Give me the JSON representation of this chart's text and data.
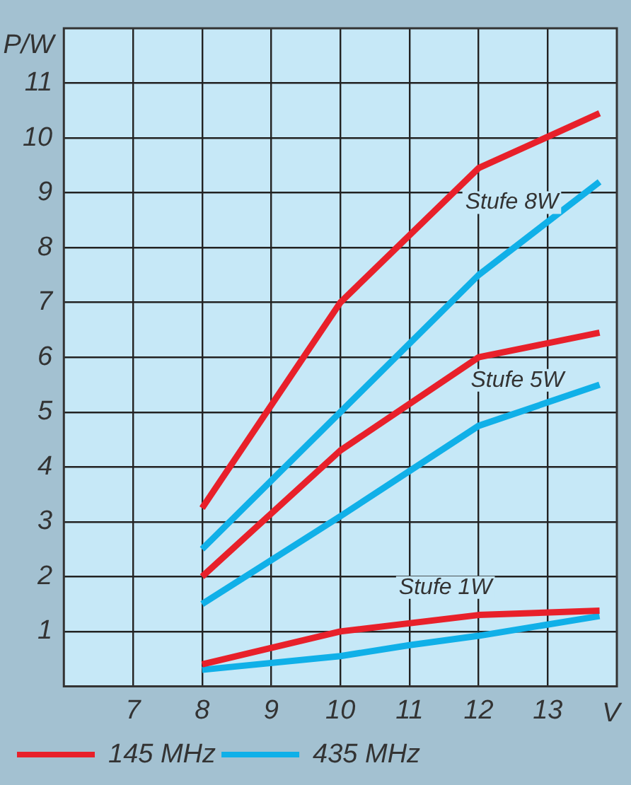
{
  "chart_data": {
    "type": "line",
    "xlabel": "V",
    "ylabel": "P/W",
    "xlim": [
      6,
      14
    ],
    "xticks": [
      7,
      8,
      9,
      10,
      11,
      12,
      13
    ],
    "ylim": [
      0,
      12
    ],
    "yticks": [
      1,
      2,
      3,
      4,
      5,
      6,
      7,
      8,
      9,
      10,
      11
    ],
    "grid": true,
    "legend": "bottom",
    "marker": "none",
    "line_style": "solid",
    "annotations": [
      "Stufe 8W",
      "Stufe 5W",
      "Stufe 1W"
    ],
    "series": [
      {
        "name": "145 MHz",
        "color": "#e8202a",
        "x": [
          8,
          10,
          12,
          13.75
        ],
        "values": [
          3.25,
          7.0,
          9.45,
          10.45
        ]
      },
      {
        "name": "435 MHz",
        "color": "#10b0e8",
        "x": [
          8,
          10,
          12,
          13.75
        ],
        "values": [
          2.5,
          5.0,
          7.5,
          9.2
        ]
      },
      {
        "color": "#e8202a",
        "x": [
          8,
          10,
          12,
          13.75
        ],
        "values": [
          2.0,
          4.3,
          6.0,
          6.45
        ]
      },
      {
        "color": "#10b0e8",
        "x": [
          8,
          10,
          12,
          13.75
        ],
        "values": [
          1.5,
          3.1,
          4.75,
          5.5
        ]
      },
      {
        "color": "#e8202a",
        "x": [
          8,
          10,
          12,
          13.75
        ],
        "values": [
          0.4,
          1.0,
          1.3,
          1.38
        ]
      },
      {
        "color": "#10b0e8",
        "x": [
          8,
          10,
          11,
          12,
          13.75
        ],
        "values": [
          0.3,
          0.55,
          0.75,
          0.92,
          1.28
        ]
      }
    ]
  }
}
